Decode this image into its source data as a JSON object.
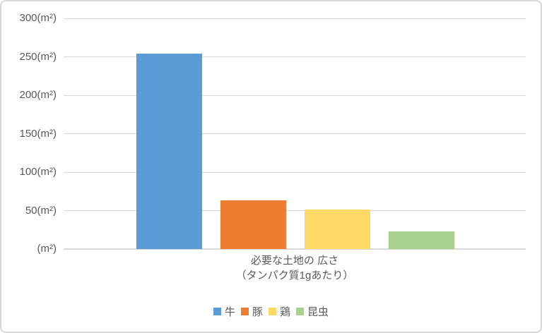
{
  "colors": {
    "background": "#FFFFFF",
    "border": "#D9D9D9",
    "gridline": "#D9D9D9",
    "text": "#595959"
  },
  "chart_data": {
    "type": "bar",
    "title": "必要な土地の 広さ（タンパク質1gあたり）",
    "title_lines": [
      "必要な土地の 広さ",
      "（タンパク質1gあたり）"
    ],
    "categories": [
      "牛",
      "豚",
      "鶏",
      "昆虫"
    ],
    "values": [
      254,
      63,
      51,
      23
    ],
    "colors": [
      "#5B9BD5",
      "#ED7D31",
      "#FFD966",
      "#A9D18E"
    ],
    "xlabel": "",
    "ylabel": "",
    "ylim": [
      0,
      300
    ],
    "grid": true,
    "legend_position": "bottom",
    "y_ticks": [
      {
        "value": 300,
        "label": "300(m²)"
      },
      {
        "value": 250,
        "label": "250(m²)"
      },
      {
        "value": 200,
        "label": "200(m²)"
      },
      {
        "value": 150,
        "label": "150(m²)"
      },
      {
        "value": 100,
        "label": "100(m²)"
      },
      {
        "value": 50,
        "label": "50(m²)"
      },
      {
        "value": 0,
        "label": "(m²)"
      }
    ]
  },
  "legend": {
    "items": [
      {
        "label": "牛",
        "color": "#5B9BD5"
      },
      {
        "label": "豚",
        "color": "#ED7D31"
      },
      {
        "label": "鶏",
        "color": "#FFD966"
      },
      {
        "label": "昆虫",
        "color": "#A9D18E"
      }
    ]
  }
}
